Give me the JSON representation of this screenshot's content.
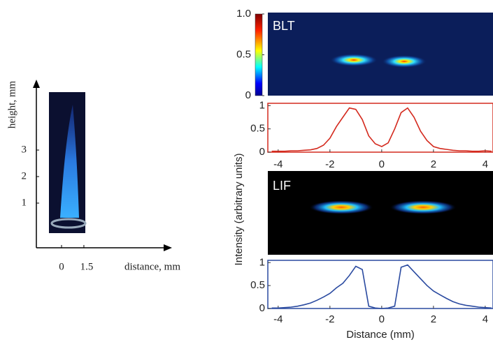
{
  "chart_data": [
    {
      "type": "line",
      "title": "BLT",
      "x": [
        -4.25,
        -4,
        -3.75,
        -3.5,
        -3.25,
        -3,
        -2.75,
        -2.5,
        -2.25,
        -2,
        -1.75,
        -1.5,
        -1.25,
        -1,
        -0.75,
        -0.5,
        -0.25,
        0,
        0.25,
        0.5,
        0.75,
        1,
        1.25,
        1.5,
        1.75,
        2,
        2.25,
        2.5,
        2.75,
        3,
        3.25,
        3.5,
        3.75,
        4,
        4.25
      ],
      "series": [
        {
          "color": "#d42a1e",
          "values": [
            0.02,
            0.02,
            0.02,
            0.03,
            0.03,
            0.04,
            0.05,
            0.08,
            0.15,
            0.3,
            0.55,
            0.75,
            0.95,
            0.92,
            0.7,
            0.35,
            0.18,
            0.12,
            0.2,
            0.5,
            0.85,
            0.95,
            0.75,
            0.45,
            0.25,
            0.12,
            0.08,
            0.06,
            0.04,
            0.03,
            0.03,
            0.02,
            0.02,
            0.03,
            0.02
          ]
        }
      ],
      "xlim": [
        -4.4,
        4.3
      ],
      "xticks": [
        -4,
        -2,
        0,
        2,
        4
      ],
      "ylim": [
        0,
        1.05
      ],
      "yticks": [
        0,
        0.5,
        1
      ]
    },
    {
      "type": "line",
      "title": "LIF",
      "x_label": "Distance (mm)",
      "x": [
        -4.25,
        -4,
        -3.75,
        -3.5,
        -3.25,
        -3,
        -2.75,
        -2.5,
        -2.25,
        -2,
        -1.75,
        -1.5,
        -1.25,
        -1,
        -0.75,
        -0.5,
        -0.25,
        0,
        0.25,
        0.5,
        0.75,
        1,
        1.25,
        1.5,
        1.75,
        2,
        2.25,
        2.5,
        2.75,
        3,
        3.25,
        3.5,
        3.75,
        4,
        4.25
      ],
      "series": [
        {
          "color": "#2a4aa0",
          "values": [
            0.01,
            0.01,
            0.02,
            0.03,
            0.05,
            0.08,
            0.12,
            0.18,
            0.25,
            0.33,
            0.45,
            0.55,
            0.72,
            0.92,
            0.85,
            0.05,
            0.01,
            0,
            0.01,
            0.05,
            0.9,
            0.95,
            0.8,
            0.65,
            0.5,
            0.38,
            0.3,
            0.22,
            0.15,
            0.1,
            0.07,
            0.05,
            0.03,
            0.02,
            0.01
          ]
        }
      ],
      "xlim": [
        -4.4,
        4.3
      ],
      "xticks": [
        -4,
        -2,
        0,
        2,
        4
      ],
      "ylim": [
        0,
        1.05
      ],
      "yticks": [
        0,
        0.5,
        1
      ]
    }
  ],
  "y_label": "Intensity (arbitrary units)",
  "colorbar": {
    "range": [
      0,
      1
    ],
    "ticks": [
      {
        "value": 1,
        "label": "1.0"
      },
      0.5,
      0
    ]
  },
  "flame_panel": {
    "y_label": "height, mm",
    "yticks": [
      1,
      2,
      3
    ],
    "x_label": "distance, mm",
    "xticks": [
      0,
      1.5
    ]
  }
}
